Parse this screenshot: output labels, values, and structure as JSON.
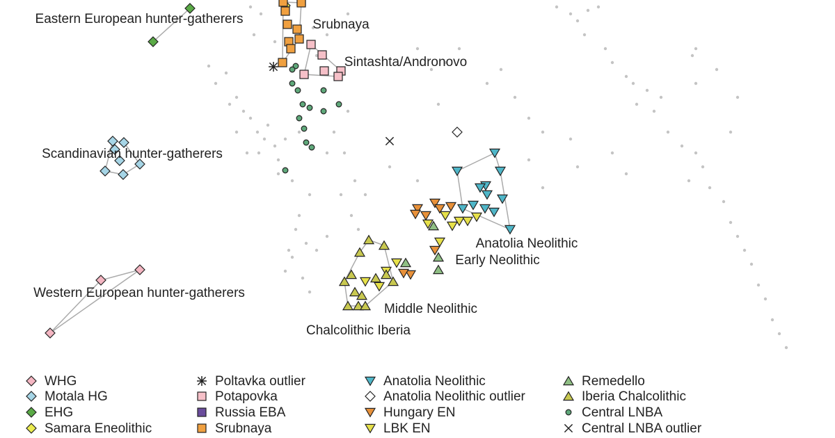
{
  "chart_data": {
    "type": "scatter",
    "xlim": [
      0,
      1200
    ],
    "ylim": [
      0,
      520
    ],
    "annotations": [
      {
        "text": "Eastern European hunter-gatherers",
        "x": 200,
        "y": 492
      },
      {
        "text": "Srubnaya",
        "x": 490,
        "y": 484
      },
      {
        "text": "Sintashta/Andronovo",
        "x": 583,
        "y": 430
      },
      {
        "text": "Scandinavian hunter-gatherers",
        "x": 190,
        "y": 298
      },
      {
        "text": "Western European hunter-gatherers",
        "x": 200,
        "y": 98
      },
      {
        "text": "Anatolia Neolithic",
        "x": 757,
        "y": 169
      },
      {
        "text": "Early Neolithic",
        "x": 715,
        "y": 145
      },
      {
        "text": "Middle Neolithic",
        "x": 619,
        "y": 75
      },
      {
        "text": "Chalcolithic Iberia",
        "x": 515,
        "y": 44
      }
    ],
    "series": [
      {
        "name": "WHG",
        "color": "#f4b6c2",
        "marker": "diamond",
        "hull": true,
        "x": [
          72,
          145,
          201
        ],
        "y": [
          41,
          117,
          132
        ]
      },
      {
        "name": "Motala HG",
        "color": "#a6d5e6",
        "marker": "diamond",
        "hull": true,
        "x": [
          162,
          178,
          151,
          177,
          172,
          201,
          165
        ],
        "y": [
          317,
          315,
          274,
          269,
          289,
          284,
          305
        ]
      },
      {
        "name": "EHG",
        "color": "#5aaa46",
        "marker": "diamond",
        "hull": true,
        "x": [
          220,
          273
        ],
        "y": [
          460,
          508
        ]
      },
      {
        "name": "Samara Eneolithic",
        "color": "#ecec50",
        "marker": "diamond",
        "x": [
          410
        ],
        "y": [
          512
        ]
      },
      {
        "name": "Poltavka outlier",
        "color": "#222222",
        "marker": "asterisk",
        "x": [
          393
        ],
        "y": [
          424
        ]
      },
      {
        "name": "Potapovka",
        "color": "#f6c0c8",
        "marker": "square",
        "hull": true,
        "x": [
          447,
          463,
          437,
          466,
          490,
          486
        ],
        "y": [
          456,
          441,
          413,
          418,
          418,
          410
        ]
      },
      {
        "name": "Russia EBA",
        "color": "#6a4c9c",
        "marker": "square",
        "x": [
          433
        ],
        "y": [
          518
        ]
      },
      {
        "name": "Srubnaya",
        "color": "#f0a040",
        "marker": "square",
        "hull": true,
        "x": [
          410,
          413,
          427,
          415,
          430,
          406,
          418,
          433,
          407
        ],
        "y": [
          504,
          485,
          478,
          460,
          464,
          430,
          450,
          516,
          517
        ]
      },
      {
        "name": "Anatolia Neolithic",
        "color": "#4fb6c8",
        "marker": "triangle-down",
        "hull": true,
        "x": [
          711,
          657,
          719,
          698,
          722,
          697,
          733,
          690,
          710,
          680,
          665,
          700
        ],
        "y": [
          300,
          274,
          274,
          253,
          234,
          220,
          190,
          250,
          215,
          225,
          220,
          240
        ]
      },
      {
        "name": "Anatolia Neolithic outlier",
        "color": "#ffffff",
        "marker": "diamond",
        "x": [
          657
        ],
        "y": [
          330
        ]
      },
      {
        "name": "Hungary EN",
        "color": "#e8913a",
        "marker": "triangle-down",
        "x": [
          600,
          625,
          632,
          648,
          612,
          597,
          625,
          590,
          580
        ],
        "y": [
          220,
          228,
          220,
          223,
          210,
          212,
          160,
          125,
          127
        ]
      },
      {
        "name": "LBK EN",
        "color": "#e6e04a",
        "marker": "triangle-down",
        "x": [
          615,
          640,
          660,
          672,
          685,
          632,
          650,
          570,
          555,
          525,
          545
        ],
        "y": [
          198,
          210,
          202,
          202,
          208,
          172,
          195,
          142,
          130,
          115,
          108
        ]
      },
      {
        "name": "Remedello",
        "color": "#8fbf84",
        "marker": "triangle-up",
        "x": [
          623,
          630,
          630,
          583
        ],
        "y": [
          195,
          150,
          132,
          142
        ]
      },
      {
        "name": "Iberia Chalcolithic",
        "color": "#c8c850",
        "marker": "triangle-up",
        "hull": true,
        "x": [
          495,
          510,
          520,
          500,
          515,
          525,
          540,
          555,
          530,
          552,
          517,
          565,
          505
        ],
        "y": [
          115,
          100,
          95,
          80,
          80,
          80,
          120,
          125,
          175,
          167,
          157,
          115,
          125
        ]
      },
      {
        "name": "Central LNBA",
        "color": "#5fa87a",
        "marker": "circle",
        "x": [
          425,
          428,
          420,
          435,
          445,
          437,
          420,
          430,
          440,
          410,
          448,
          465,
          487,
          465
        ],
        "y": [
          425,
          390,
          400,
          370,
          365,
          335,
          420,
          350,
          315,
          275,
          308,
          390,
          370,
          360
        ]
      },
      {
        "name": "Central LNBA outlier",
        "color": "#222222",
        "marker": "x",
        "x": [
          560
        ],
        "y": [
          317
        ]
      },
      {
        "color": "#c4c4c4",
        "marker": "dot",
        "x": [
          300,
          310,
          325,
          340,
          350,
          360,
          370,
          380,
          385,
          395,
          400,
          372,
          355,
          340,
          330,
          365,
          375,
          360,
          395,
          450,
          470,
          455,
          500,
          430,
          410,
          400,
          420,
          445,
          470,
          480,
          500,
          495,
          510,
          525,
          490,
          505,
          515,
          430,
          425,
          440,
          420,
          435,
          445,
          410,
          415,
          455,
          470,
          600,
          620,
          640,
          660,
          630,
          700,
          720,
          740,
          760,
          780,
          560,
          600,
          800,
          820,
          830,
          845,
          860,
          840,
          870,
          880,
          900,
          910,
          930,
          950,
          915,
          940,
          960,
          980,
          1000,
          1010,
          990,
          1020,
          1040,
          1050,
          1060,
          1070,
          1080,
          1090,
          1100,
          1110,
          1120,
          1130,
          1000,
          1030,
          1060,
          1050,
          880,
          900,
          830,
          820,
          780,
          760,
          1000,
          995
        ],
        "y": [
          425,
          400,
          415,
          380,
          360,
          350,
          330,
          320,
          340,
          310,
          290,
          300,
          300,
          330,
          370,
          470,
          500,
          510,
          460,
          480,
          470,
          440,
          500,
          330,
          320,
          270,
          260,
          240,
          300,
          330,
          360,
          300,
          260,
          240,
          240,
          210,
          190,
          210,
          190,
          170,
          150,
          120,
          100,
          130,
          160,
          160,
          180,
          450,
          420,
          430,
          450,
          370,
          400,
          420,
          380,
          350,
          330,
          280,
          260,
          510,
          500,
          490,
          505,
          510,
          470,
          450,
          430,
          410,
          400,
          390,
          380,
          370,
          360,
          330,
          310,
          300,
          280,
          260,
          250,
          230,
          200,
          180,
          160,
          140,
          110,
          90,
          60,
          40,
          20,
          450,
          420,
          380,
          330,
          300,
          270,
          280,
          320,
          250,
          290,
          400,
          440
        ]
      }
    ]
  }
}
